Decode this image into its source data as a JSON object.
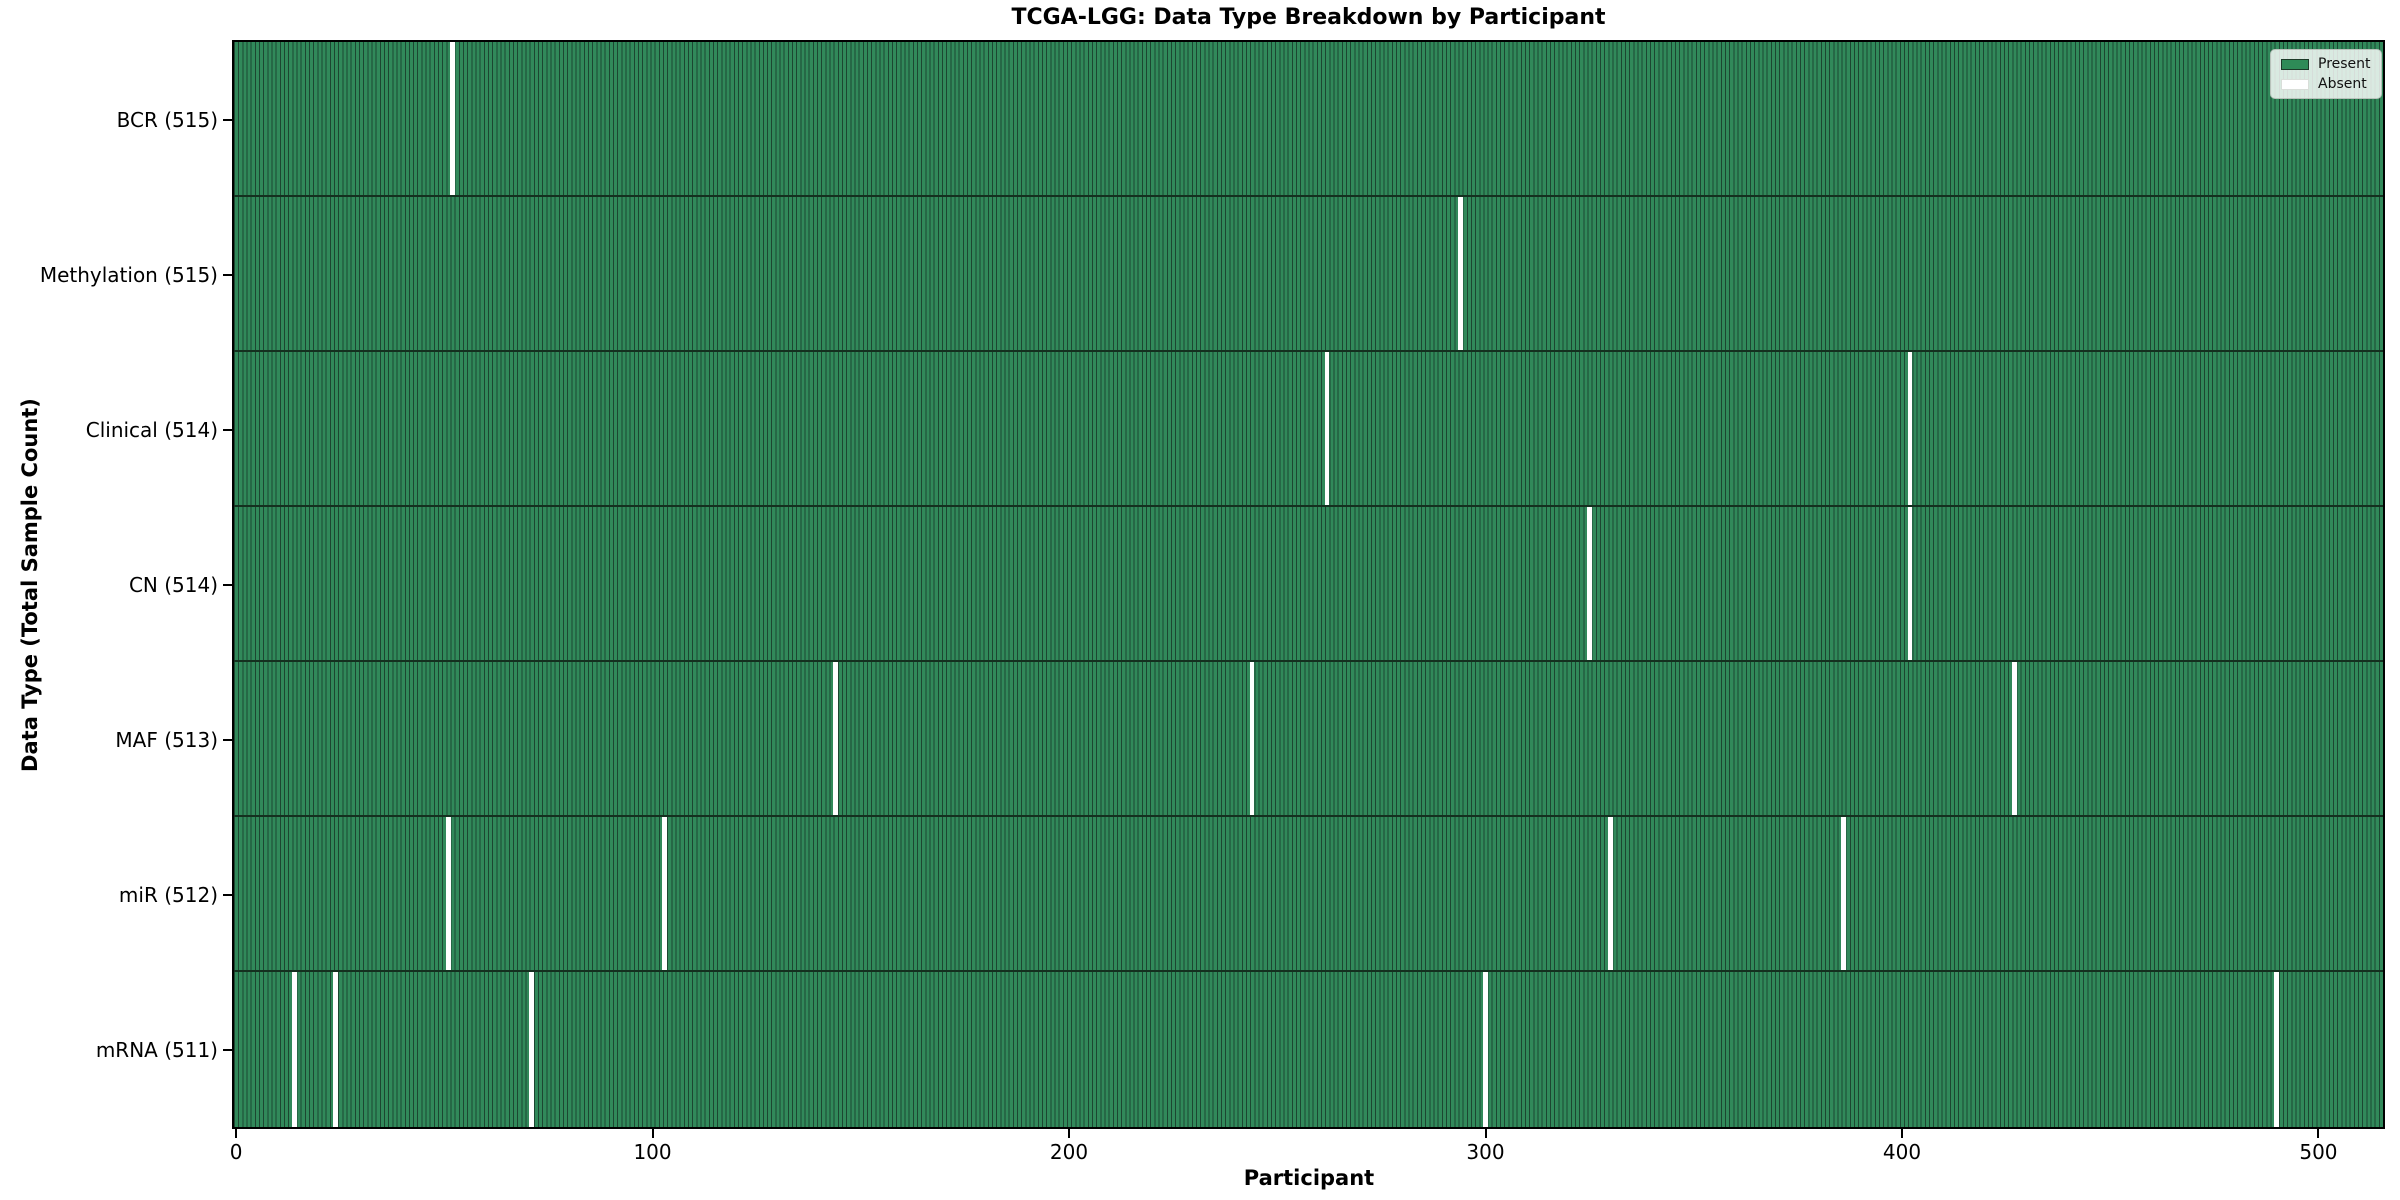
{
  "chart_data": {
    "type": "heatmap",
    "title": "TCGA-LGG: Data Type Breakdown by Participant",
    "xlabel": "Participant",
    "ylabel": "Data Type (Total Sample Count)",
    "n_participants": 516,
    "x_ticks": [
      0,
      100,
      200,
      300,
      400,
      500
    ],
    "xlim": [
      0,
      515
    ],
    "grid": false,
    "legend_position": "upper right",
    "legend": [
      {
        "label": "Present",
        "color": "#2E8B57"
      },
      {
        "label": "Absent",
        "color": "#FFFFFF"
      }
    ],
    "colors": {
      "present_fill": "#31895A",
      "bar_edge": "#1C4631",
      "absent_fill": "#FFFFFF",
      "row_divider": "#14301F"
    },
    "rows": [
      {
        "label": "BCR (515)",
        "total": 515,
        "absent_participants": [
          52
        ]
      },
      {
        "label": "Methylation (515)",
        "total": 515,
        "absent_participants": [
          294
        ]
      },
      {
        "label": "Clinical (514)",
        "total": 514,
        "absent_participants": [
          262,
          402
        ]
      },
      {
        "label": "CN (514)",
        "total": 514,
        "absent_participants": [
          325,
          402
        ]
      },
      {
        "label": "MAF (513)",
        "total": 513,
        "absent_participants": [
          144,
          244,
          427
        ]
      },
      {
        "label": "miR (512)",
        "total": 512,
        "absent_participants": [
          51,
          103,
          330,
          386
        ]
      },
      {
        "label": "mRNA (511)",
        "total": 511,
        "absent_participants": [
          14,
          24,
          71,
          300,
          490
        ]
      }
    ]
  }
}
